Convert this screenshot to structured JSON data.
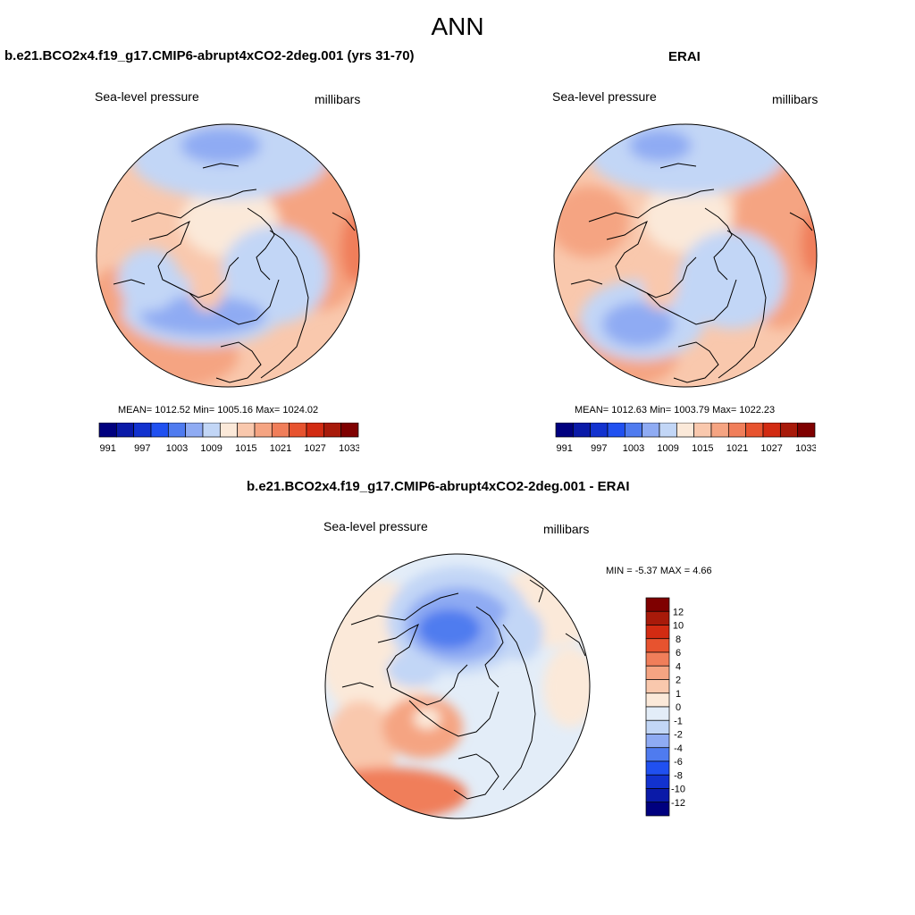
{
  "page": {
    "title": "ANN"
  },
  "panels": [
    {
      "id": "model",
      "title": "b.e21.BCO2x4.f19_g17.CMIP6-abrupt4xCO2-2deg.001 (yrs 31-70)",
      "variable": "Sea-level pressure",
      "units": "millibars",
      "stats_text": "MEAN= 1012.52  Min= 1005.16  Max= 1024.02",
      "mean": 1012.52,
      "min": 1005.16,
      "max": 1024.02
    },
    {
      "id": "obs",
      "title": "ERAI",
      "variable": "Sea-level pressure",
      "units": "millibars",
      "stats_text": "MEAN= 1012.63  Min= 1003.79  Max= 1022.23",
      "mean": 1012.63,
      "min": 1003.79,
      "max": 1022.23
    },
    {
      "id": "diff",
      "title": "b.e21.BCO2x4.f19_g17.CMIP6-abrupt4xCO2-2deg.001 - ERAI",
      "variable": "Sea-level pressure",
      "units": "millibars",
      "stats_text": "MIN =  -5.37 MAX =   4.66",
      "min": -5.37,
      "max": 4.66
    }
  ],
  "colorbar_abs": {
    "colors": [
      "#00007f",
      "#0a1aa8",
      "#1232cf",
      "#2050f0",
      "#4f7bef",
      "#8fabf3",
      "#c2d6f6",
      "#fbe9d9",
      "#f9c8ad",
      "#f5a482",
      "#f07e5a",
      "#e7532f",
      "#d22b12",
      "#a81a0a",
      "#7f0000"
    ],
    "tick_labels": [
      "991",
      "997",
      "1003",
      "1009",
      "1015",
      "1021",
      "1027",
      "1033"
    ]
  },
  "colorbar_diff": {
    "colors": [
      "#7f0000",
      "#a81a0a",
      "#d22b12",
      "#e7532f",
      "#f07e5a",
      "#f5a482",
      "#f9c8ad",
      "#fbe9d9",
      "#e3edf8",
      "#c2d6f6",
      "#8fabf3",
      "#4f7bef",
      "#2050f0",
      "#1232cf",
      "#0a1aa8",
      "#00007f"
    ],
    "tick_labels": [
      "12",
      "10",
      "8",
      "6",
      "4",
      "2",
      "1",
      "0",
      "-1",
      "-2",
      "-4",
      "-6",
      "-8",
      "-10",
      "-12"
    ]
  }
}
